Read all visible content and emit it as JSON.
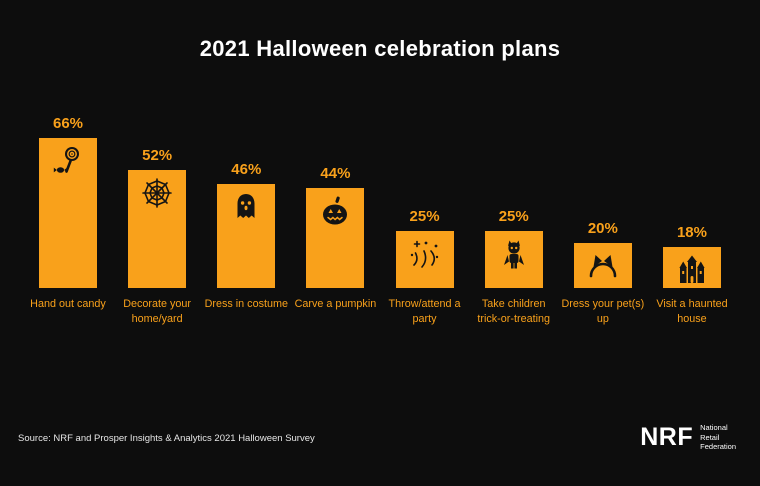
{
  "title": "2021 Halloween celebration plans",
  "source": "Source: NRF and Prosper Insights & Analytics 2021 Halloween Survey",
  "logo": {
    "abbr": "NRF",
    "line1": "National",
    "line2": "Retail",
    "line3": "Federation"
  },
  "colors": {
    "background": "#0d0d0d",
    "bar": "#F9A11B",
    "icon": "#141414",
    "title": "#ffffff",
    "source": "#e6e6e6"
  },
  "chart_data": {
    "type": "bar",
    "title": "2021 Halloween celebration plans",
    "categories": [
      "Hand out candy",
      "Decorate your home/yard",
      "Dress in costume",
      "Carve a pumpkin",
      "Throw/attend a party",
      "Take children trick-or-treating",
      "Dress your pet(s) up",
      "Visit a haunted house"
    ],
    "values": [
      66,
      52,
      46,
      44,
      25,
      25,
      20,
      18
    ],
    "value_labels": [
      "66%",
      "52%",
      "46%",
      "44%",
      "25%",
      "25%",
      "20%",
      "18%"
    ],
    "icons": [
      "lollipop-candy-icon",
      "spider-web-icon",
      "ghost-icon",
      "pumpkin-icon",
      "confetti-icon",
      "costumed-child-icon",
      "cat-ears-icon",
      "haunted-house-icon"
    ],
    "xlabel": "",
    "ylabel": "",
    "ylim": [
      0,
      70
    ],
    "grid": false,
    "legend": false
  }
}
